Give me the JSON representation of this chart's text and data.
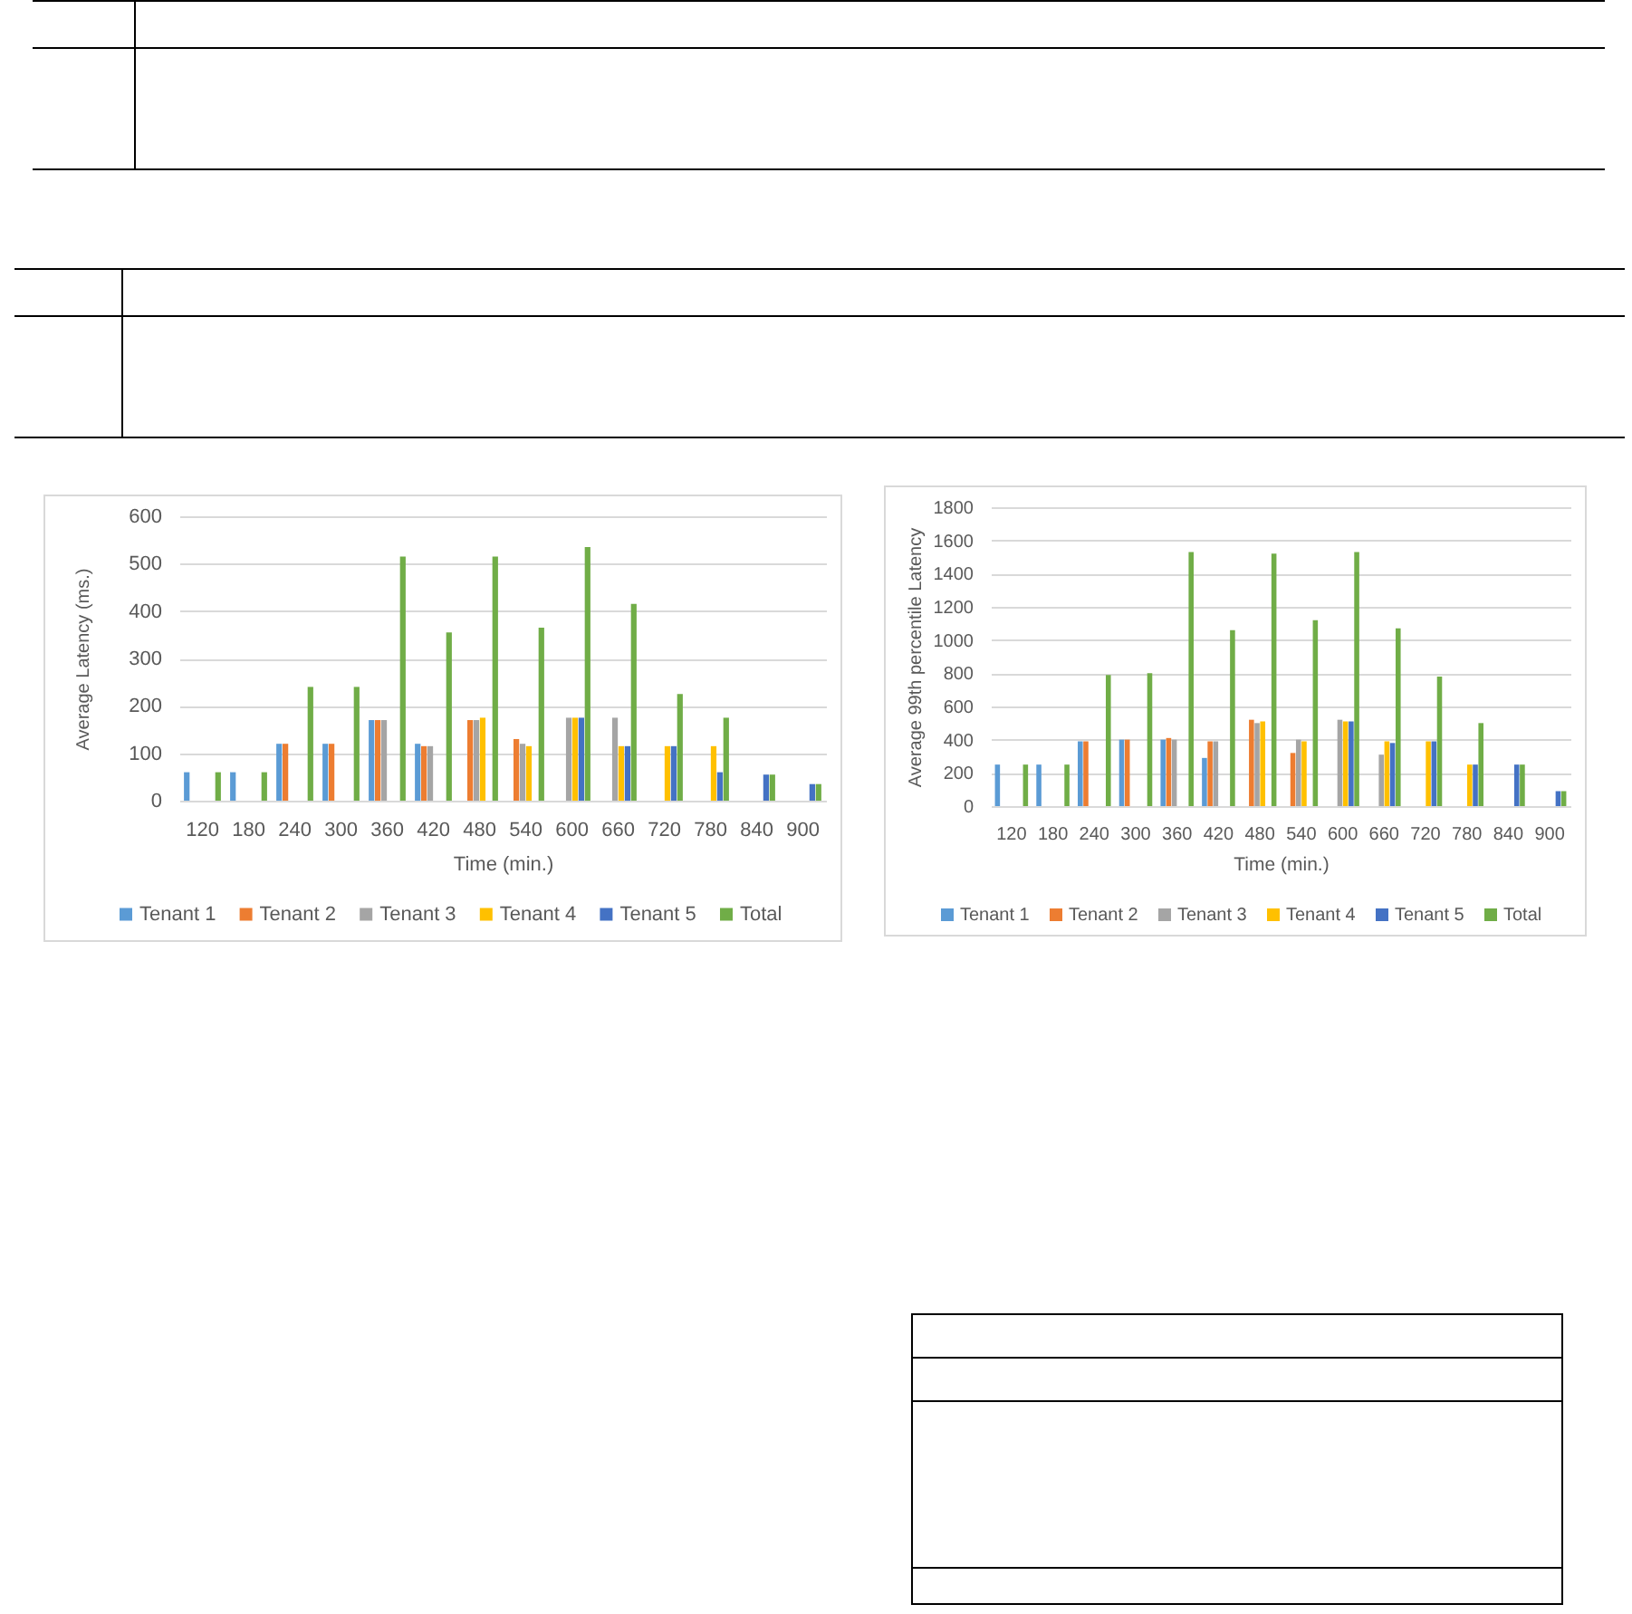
{
  "chart_data": [
    {
      "type": "bar",
      "xlabel": "Time (min.)",
      "ylabel": "Average Latency (ms.)",
      "categories": [
        "120",
        "180",
        "240",
        "300",
        "360",
        "420",
        "480",
        "540",
        "600",
        "660",
        "720",
        "780",
        "840",
        "900"
      ],
      "series": [
        {
          "name": "Tenant 1",
          "color": "#5b9bd5",
          "values": [
            60,
            60,
            120,
            120,
            170,
            120,
            null,
            null,
            null,
            null,
            null,
            null,
            null,
            null
          ]
        },
        {
          "name": "Tenant 2",
          "color": "#ed7d31",
          "values": [
            null,
            null,
            120,
            120,
            170,
            115,
            170,
            130,
            null,
            null,
            null,
            null,
            null,
            null
          ]
        },
        {
          "name": "Tenant 3",
          "color": "#a5a5a5",
          "values": [
            null,
            null,
            null,
            null,
            170,
            115,
            170,
            120,
            175,
            175,
            null,
            null,
            null,
            null
          ]
        },
        {
          "name": "Tenant 4",
          "color": "#ffc000",
          "values": [
            null,
            null,
            null,
            null,
            null,
            null,
            175,
            115,
            175,
            115,
            115,
            115,
            null,
            null
          ]
        },
        {
          "name": "Tenant 5",
          "color": "#4472c4",
          "values": [
            null,
            null,
            null,
            null,
            null,
            null,
            null,
            null,
            175,
            115,
            115,
            60,
            55,
            35
          ]
        },
        {
          "name": "Total",
          "color": "#70ad47",
          "values": [
            60,
            60,
            240,
            240,
            515,
            355,
            515,
            365,
            535,
            415,
            225,
            175,
            55,
            35
          ]
        }
      ],
      "ylim": [
        0,
        600
      ],
      "yticks": [
        0,
        100,
        200,
        300,
        400,
        500,
        600
      ],
      "grid": "y",
      "legend": "bottom"
    },
    {
      "type": "bar",
      "xlabel": "Time (min.)",
      "ylabel": "Average 99th percentile Latency",
      "categories": [
        "120",
        "180",
        "240",
        "300",
        "360",
        "420",
        "480",
        "540",
        "600",
        "660",
        "720",
        "780",
        "840",
        "900"
      ],
      "series": [
        {
          "name": "Tenant 1",
          "color": "#5b9bd5",
          "values": [
            250,
            250,
            390,
            400,
            400,
            290,
            null,
            null,
            null,
            null,
            null,
            null,
            null,
            null
          ]
        },
        {
          "name": "Tenant 2",
          "color": "#ed7d31",
          "values": [
            null,
            null,
            390,
            400,
            410,
            390,
            520,
            320,
            null,
            null,
            null,
            null,
            null,
            null
          ]
        },
        {
          "name": "Tenant 3",
          "color": "#a5a5a5",
          "values": [
            null,
            null,
            null,
            null,
            400,
            390,
            500,
            400,
            520,
            310,
            null,
            null,
            null,
            null
          ]
        },
        {
          "name": "Tenant 4",
          "color": "#ffc000",
          "values": [
            null,
            null,
            null,
            null,
            null,
            null,
            510,
            390,
            510,
            390,
            390,
            250,
            null,
            null
          ]
        },
        {
          "name": "Tenant 5",
          "color": "#4472c4",
          "values": [
            null,
            null,
            null,
            null,
            null,
            null,
            null,
            null,
            510,
            380,
            390,
            250,
            250,
            90
          ]
        },
        {
          "name": "Total",
          "color": "#70ad47",
          "values": [
            250,
            250,
            790,
            800,
            1530,
            1060,
            1520,
            1120,
            1530,
            1070,
            780,
            500,
            250,
            90
          ]
        }
      ],
      "ylim": [
        0,
        1800
      ],
      "yticks": [
        0,
        200,
        400,
        600,
        800,
        1000,
        1200,
        1400,
        1600,
        1800
      ],
      "grid": "y",
      "legend": "bottom"
    }
  ]
}
